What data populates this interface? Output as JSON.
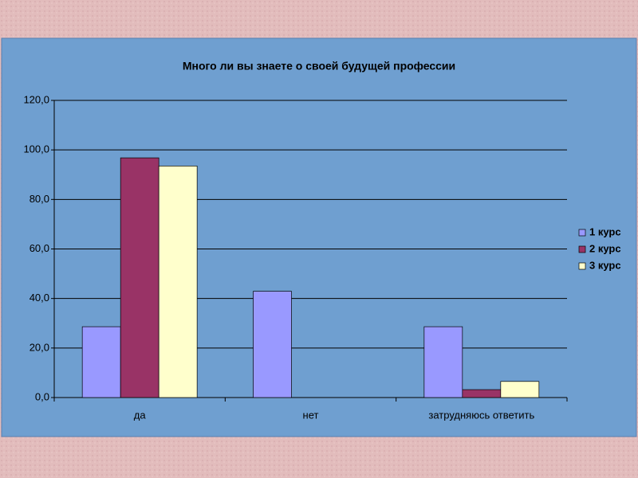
{
  "chart_data": {
    "type": "bar",
    "title": "Много ли вы знаете о своей будущей профессии",
    "categories": [
      "да",
      "нет",
      "затрудняюсь ответить"
    ],
    "series": [
      {
        "name": "1 курс",
        "color": "#9999ff",
        "values": [
          28.6,
          42.9,
          28.6
        ]
      },
      {
        "name": "2 курс",
        "color": "#993366",
        "values": [
          96.8,
          0,
          3.2
        ]
      },
      {
        "name": "3 курс",
        "color": "#ffffcc",
        "values": [
          93.5,
          0,
          6.5
        ]
      }
    ],
    "ylim": [
      0,
      120
    ],
    "yticks": [
      {
        "value": 0,
        "label": "0,0"
      },
      {
        "value": 20,
        "label": "20,0"
      },
      {
        "value": 40,
        "label": "40,0"
      },
      {
        "value": 60,
        "label": "60,0"
      },
      {
        "value": 80,
        "label": "80,0"
      },
      {
        "value": 100,
        "label": "100,0"
      },
      {
        "value": 120,
        "label": "120,0"
      }
    ],
    "grid": true,
    "legend": "right"
  }
}
